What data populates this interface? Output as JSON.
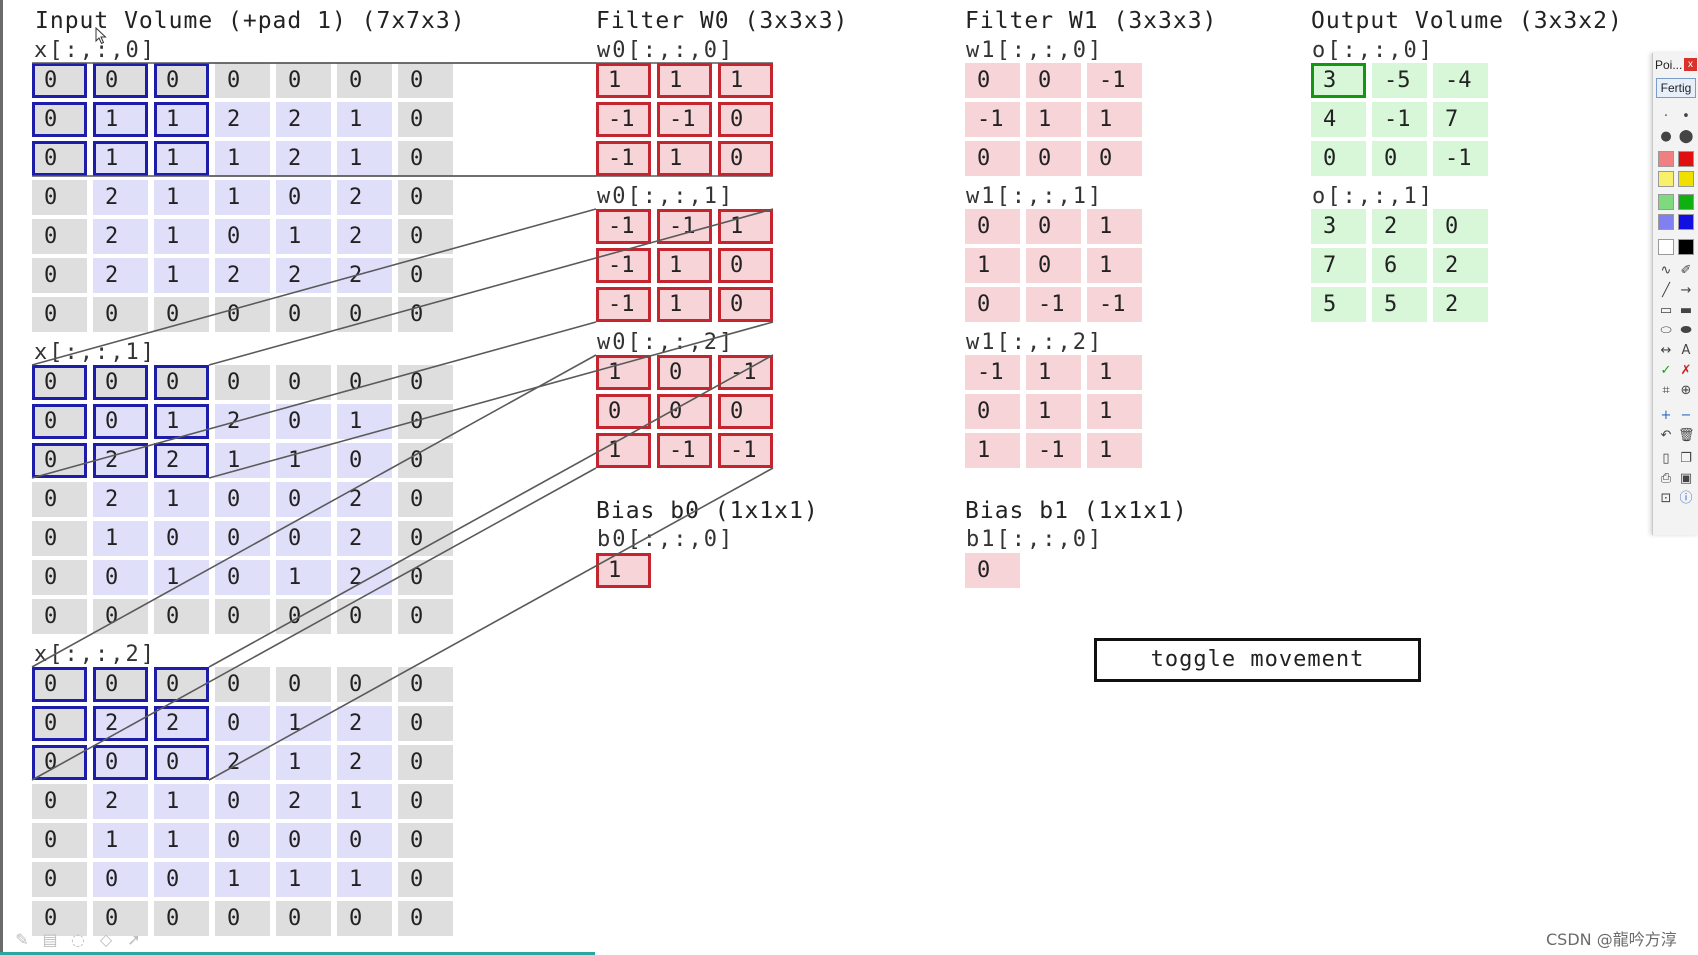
{
  "headings": {
    "input": "Input Volume (+pad 1) (7x7x3)",
    "w0": "Filter W0 (3x3x3)",
    "w1": "Filter W1 (3x3x3)",
    "output": "Output Volume (3x3x2)",
    "b0": "Bias b0 (1x1x1)",
    "b1": "Bias b1 (1x1x1)"
  },
  "input": {
    "slices": [
      {
        "label": "x[:,:,0]",
        "rows": [
          [
            "0",
            "0",
            "0",
            "0",
            "0",
            "0",
            "0"
          ],
          [
            "0",
            "1",
            "1",
            "2",
            "2",
            "1",
            "0"
          ],
          [
            "0",
            "1",
            "1",
            "1",
            "2",
            "1",
            "0"
          ],
          [
            "0",
            "2",
            "1",
            "1",
            "0",
            "2",
            "0"
          ],
          [
            "0",
            "2",
            "1",
            "0",
            "1",
            "2",
            "0"
          ],
          [
            "0",
            "2",
            "1",
            "2",
            "2",
            "2",
            "0"
          ],
          [
            "0",
            "0",
            "0",
            "0",
            "0",
            "0",
            "0"
          ]
        ]
      },
      {
        "label": "x[:,:,1]",
        "rows": [
          [
            "0",
            "0",
            "0",
            "0",
            "0",
            "0",
            "0"
          ],
          [
            "0",
            "0",
            "1",
            "2",
            "0",
            "1",
            "0"
          ],
          [
            "0",
            "2",
            "2",
            "1",
            "1",
            "0",
            "0"
          ],
          [
            "0",
            "2",
            "1",
            "0",
            "0",
            "2",
            "0"
          ],
          [
            "0",
            "1",
            "0",
            "0",
            "0",
            "2",
            "0"
          ],
          [
            "0",
            "0",
            "1",
            "0",
            "1",
            "2",
            "0"
          ],
          [
            "0",
            "0",
            "0",
            "0",
            "0",
            "0",
            "0"
          ]
        ]
      },
      {
        "label": "x[:,:,2]",
        "rows": [
          [
            "0",
            "0",
            "0",
            "0",
            "0",
            "0",
            "0"
          ],
          [
            "0",
            "2",
            "2",
            "0",
            "1",
            "2",
            "0"
          ],
          [
            "0",
            "0",
            "0",
            "2",
            "1",
            "2",
            "0"
          ],
          [
            "0",
            "2",
            "1",
            "0",
            "2",
            "1",
            "0"
          ],
          [
            "0",
            "1",
            "1",
            "0",
            "0",
            "0",
            "0"
          ],
          [
            "0",
            "0",
            "0",
            "1",
            "1",
            "1",
            "0"
          ],
          [
            "0",
            "0",
            "0",
            "0",
            "0",
            "0",
            "0"
          ]
        ]
      }
    ]
  },
  "w0": {
    "slices": [
      {
        "label": "w0[:,:,0]",
        "rows": [
          [
            "1",
            "1",
            "1"
          ],
          [
            "-1",
            "-1",
            "0"
          ],
          [
            "-1",
            "1",
            "0"
          ]
        ]
      },
      {
        "label": "w0[:,:,1]",
        "rows": [
          [
            "-1",
            "-1",
            "1"
          ],
          [
            "-1",
            "1",
            "0"
          ],
          [
            "-1",
            "1",
            "0"
          ]
        ]
      },
      {
        "label": "w0[:,:,2]",
        "rows": [
          [
            "1",
            "0",
            "-1"
          ],
          [
            "0",
            "0",
            "0"
          ],
          [
            "1",
            "-1",
            "-1"
          ]
        ]
      }
    ]
  },
  "w1": {
    "slices": [
      {
        "label": "w1[:,:,0]",
        "rows": [
          [
            "0",
            "0",
            "-1"
          ],
          [
            "-1",
            "1",
            "1"
          ],
          [
            "0",
            "0",
            "0"
          ]
        ]
      },
      {
        "label": "w1[:,:,1]",
        "rows": [
          [
            "0",
            "0",
            "1"
          ],
          [
            "1",
            "0",
            "1"
          ],
          [
            "0",
            "-1",
            "-1"
          ]
        ]
      },
      {
        "label": "w1[:,:,2]",
        "rows": [
          [
            "-1",
            "1",
            "1"
          ],
          [
            "0",
            "1",
            "1"
          ],
          [
            "1",
            "-1",
            "1"
          ]
        ]
      }
    ]
  },
  "b0": {
    "label": "b0[:,:,0]",
    "value": "1"
  },
  "b1": {
    "label": "b1[:,:,0]",
    "value": "0"
  },
  "output": {
    "slices": [
      {
        "label": "o[:,:,0]",
        "rows": [
          [
            "3",
            "-5",
            "-4"
          ],
          [
            "4",
            "-1",
            "7"
          ],
          [
            "0",
            "0",
            "-1"
          ]
        ]
      },
      {
        "label": "o[:,:,1]",
        "rows": [
          [
            "3",
            "2",
            "0"
          ],
          [
            "7",
            "6",
            "2"
          ],
          [
            "5",
            "5",
            "2"
          ]
        ]
      }
    ]
  },
  "toggle": {
    "label": "toggle movement"
  },
  "palette": {
    "title": "Poi...",
    "close": "x",
    "done": "Fertig",
    "icons": [
      "dot-small-icon",
      "dot-tiny-icon",
      "dot-medium-icon",
      "dot-large-icon",
      "red-light-swatch",
      "red-swatch",
      "yellow-light-swatch",
      "yellow-swatch",
      "green-light-swatch",
      "green-swatch",
      "blue-light-swatch",
      "blue-swatch",
      "white-swatch",
      "black-swatch",
      "freehand-icon",
      "pen-icon",
      "line-icon",
      "arrow-icon",
      "rectangle-icon",
      "filled-rectangle-icon",
      "ellipse-icon",
      "filled-ellipse-icon",
      "double-arrow-icon",
      "text-icon",
      "check-icon",
      "cross-icon",
      "crop-icon",
      "zoom-icon",
      "plus-icon",
      "minus-icon",
      "undo-icon",
      "trash-icon",
      "new-page-icon",
      "copy-icon",
      "print-icon",
      "save-icon",
      "screen-icon",
      "info-icon"
    ]
  },
  "watermark": "CSDN @龍吟方淳"
}
